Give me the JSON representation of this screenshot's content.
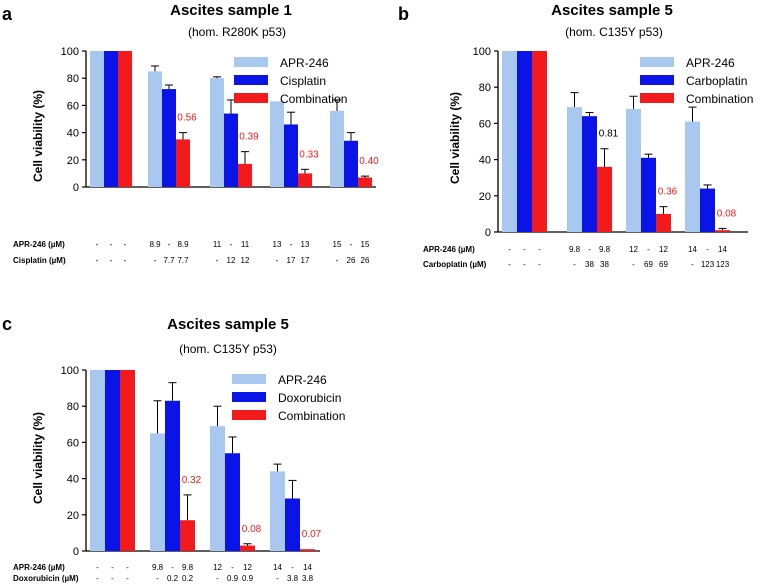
{
  "colors": {
    "apr": "#a8c8f0",
    "drug": "#0a14e6",
    "combo": "#f21a1a",
    "axis": "#000000"
  },
  "chart_data": [
    {
      "panel": "a",
      "type": "bar",
      "title": "Ascites sample 1",
      "subtitle": "(hom. R280K p53)",
      "ylabel": "Cell viability (%)",
      "ylim": [
        0,
        100
      ],
      "yticks": [
        "0",
        "20",
        "40",
        "60",
        "80",
        "100"
      ],
      "legend": [
        "APR-246",
        "Cisplatin",
        "Combination"
      ],
      "groups": [
        {
          "bars": [
            {
              "series": 0,
              "value": 100,
              "error": 0
            },
            {
              "series": 1,
              "value": 100,
              "error": 0
            },
            {
              "series": 2,
              "value": 100,
              "error": 0
            }
          ],
          "row1": [
            "-",
            "-",
            "-"
          ],
          "row2": [
            "-",
            "-",
            "-"
          ],
          "annotation": ""
        },
        {
          "bars": [
            {
              "series": 0,
              "value": 85,
              "error": 4
            },
            {
              "series": 1,
              "value": 72,
              "error": 3
            },
            {
              "series": 2,
              "value": 35,
              "error": 5
            }
          ],
          "row1": [
            "8.9",
            "-",
            "8.9"
          ],
          "row2": [
            "-",
            "7.7",
            "7.7"
          ],
          "annotation": "0.56"
        },
        {
          "bars": [
            {
              "series": 0,
              "value": 80,
              "error": 1
            },
            {
              "series": 1,
              "value": 54,
              "error": 10
            },
            {
              "series": 2,
              "value": 17,
              "error": 9
            }
          ],
          "row1": [
            "11",
            "-",
            "11"
          ],
          "row2": [
            "-",
            "12",
            "12"
          ],
          "annotation": "0.39"
        },
        {
          "bars": [
            {
              "series": 0,
              "value": 63,
              "error": 0
            },
            {
              "series": 1,
              "value": 46,
              "error": 9
            },
            {
              "series": 2,
              "value": 10,
              "error": 3
            }
          ],
          "row1": [
            "13",
            "-",
            "13"
          ],
          "row2": [
            "-",
            "17",
            "17"
          ],
          "annotation": "0.33"
        },
        {
          "bars": [
            {
              "series": 0,
              "value": 56,
              "error": 8
            },
            {
              "series": 1,
              "value": 34,
              "error": 6
            },
            {
              "series": 2,
              "value": 7,
              "error": 1
            }
          ],
          "row1": [
            "15",
            "-",
            "15"
          ],
          "row2": [
            "-",
            "26",
            "26"
          ],
          "annotation": "0.40"
        }
      ],
      "row1_label": "APR-246 (µM)",
      "row2_label": "Cisplatin  (µM)"
    },
    {
      "panel": "b",
      "type": "bar",
      "title": "Ascites sample 5",
      "subtitle": "(hom. C135Y p53)",
      "ylabel": "Cell viability (%)",
      "ylim": [
        0,
        100
      ],
      "yticks": [
        "0",
        "20",
        "40",
        "60",
        "80",
        "100"
      ],
      "legend": [
        "APR-246",
        "Carboplatin",
        "Combination"
      ],
      "groups": [
        {
          "bars": [
            {
              "series": 0,
              "value": 100,
              "error": 0
            },
            {
              "series": 1,
              "value": 100,
              "error": 0
            },
            {
              "series": 2,
              "value": 100,
              "error": 0
            }
          ],
          "row1": [
            "-",
            "-",
            "-"
          ],
          "row2": [
            "-",
            "-",
            "-"
          ],
          "annotation": ""
        },
        {
          "bars": [
            {
              "series": 0,
              "value": 69,
              "error": 8
            },
            {
              "series": 1,
              "value": 64,
              "error": 2
            },
            {
              "series": 2,
              "value": 36,
              "error": 10
            }
          ],
          "row1": [
            "9.8",
            "-",
            "9.8"
          ],
          "row2": [
            "-",
            "38",
            "38"
          ],
          "annotation": "0.81"
        },
        {
          "bars": [
            {
              "series": 0,
              "value": 68,
              "error": 7
            },
            {
              "series": 1,
              "value": 41,
              "error": 2
            },
            {
              "series": 2,
              "value": 10,
              "error": 4
            }
          ],
          "row1": [
            "12",
            "-",
            "12"
          ],
          "row2": [
            "-",
            "69",
            "69"
          ],
          "annotation": "0.36"
        },
        {
          "bars": [
            {
              "series": 0,
              "value": 61,
              "error": 8
            },
            {
              "series": 1,
              "value": 24,
              "error": 2
            },
            {
              "series": 2,
              "value": 1,
              "error": 1
            }
          ],
          "row1": [
            "14",
            "-",
            "14"
          ],
          "row2": [
            "-",
            "123",
            "123"
          ],
          "annotation": "0.08"
        }
      ],
      "row1_label": "APR-246 (µM)",
      "row2_label": "Carboplatin (µM)"
    },
    {
      "panel": "c",
      "type": "bar",
      "title": "Ascites sample 5",
      "subtitle": "(hom. C135Y p53)",
      "ylabel": "Cell viability (%)",
      "ylim": [
        0,
        100
      ],
      "yticks": [
        "0",
        "20",
        "40",
        "60",
        "80",
        "100"
      ],
      "legend": [
        "APR-246",
        "Doxorubicin",
        "Combination"
      ],
      "groups": [
        {
          "bars": [
            {
              "series": 0,
              "value": 100,
              "error": 0
            },
            {
              "series": 1,
              "value": 100,
              "error": 0
            },
            {
              "series": 2,
              "value": 100,
              "error": 0
            }
          ],
          "row1": [
            "-",
            "-",
            "-"
          ],
          "row2": [
            "-",
            "-",
            "-"
          ],
          "annotation": ""
        },
        {
          "bars": [
            {
              "series": 0,
              "value": 65,
              "error": 18
            },
            {
              "series": 1,
              "value": 83,
              "error": 10
            },
            {
              "series": 2,
              "value": 17,
              "error": 14
            }
          ],
          "row1": [
            "9.8",
            "-",
            "9.8"
          ],
          "row2": [
            "-",
            "0.2",
            "0.2"
          ],
          "annotation": "0.32"
        },
        {
          "bars": [
            {
              "series": 0,
              "value": 69,
              "error": 11
            },
            {
              "series": 1,
              "value": 54,
              "error": 9
            },
            {
              "series": 2,
              "value": 3,
              "error": 1
            }
          ],
          "row1": [
            "12",
            "-",
            "12"
          ],
          "row2": [
            "-",
            "0.9",
            "0.9"
          ],
          "annotation": "0.08"
        },
        {
          "bars": [
            {
              "series": 0,
              "value": 44,
              "error": 4
            },
            {
              "series": 1,
              "value": 29,
              "error": 10
            },
            {
              "series": 2,
              "value": 1,
              "error": 0
            }
          ],
          "row1": [
            "14",
            "-",
            "14"
          ],
          "row2": [
            "-",
            "3.8",
            "3.8"
          ],
          "annotation": "0.07"
        }
      ],
      "row1_label": "APR-246 (µM)",
      "row2_label": "Doxorubicin (µM)"
    }
  ]
}
